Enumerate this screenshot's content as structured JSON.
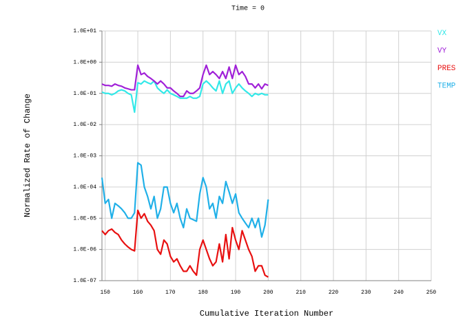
{
  "chart_data": {
    "type": "line",
    "title": "Time = 0",
    "x_label": "Cumulative Iteration Number",
    "y_label": "Normalized Rate of Change",
    "log_y": true,
    "grid": true,
    "legend": "top-right",
    "xlim": [
      149,
      250
    ],
    "xticks": [
      150,
      160,
      170,
      180,
      190,
      200,
      210,
      220,
      230,
      240,
      250
    ],
    "ylim": [
      1e-07,
      10
    ],
    "yticks": [
      {
        "value": 10,
        "label": "1.0E+01"
      },
      {
        "value": 1,
        "label": "1.0E+00"
      },
      {
        "value": 0.1,
        "label": "1.0E-01"
      },
      {
        "value": 0.01,
        "label": "1.0E-02"
      },
      {
        "value": 0.001,
        "label": "1.0E-03"
      },
      {
        "value": 0.0001,
        "label": "1.0E-04"
      },
      {
        "value": 1e-05,
        "label": "1.0E-05"
      },
      {
        "value": 1e-06,
        "label": "1.0E-06"
      },
      {
        "value": 1e-07,
        "label": "1.0E-07"
      }
    ],
    "x": [
      149,
      150,
      151,
      152,
      153,
      154,
      155,
      156,
      157,
      158,
      159,
      160,
      161,
      162,
      163,
      164,
      165,
      166,
      167,
      168,
      169,
      170,
      171,
      172,
      173,
      174,
      175,
      176,
      177,
      178,
      179,
      180,
      181,
      182,
      183,
      184,
      185,
      186,
      187,
      188,
      189,
      190,
      191,
      192,
      193,
      194,
      195,
      196,
      197,
      198,
      199,
      200
    ],
    "series": [
      {
        "name": "VX",
        "color": "#33e8e8",
        "values": [
          0.11,
          0.1,
          0.1,
          0.09,
          0.1,
          0.12,
          0.13,
          0.12,
          0.1,
          0.09,
          0.025,
          0.22,
          0.2,
          0.25,
          0.22,
          0.2,
          0.25,
          0.15,
          0.12,
          0.1,
          0.13,
          0.1,
          0.09,
          0.08,
          0.07,
          0.07,
          0.07,
          0.08,
          0.07,
          0.07,
          0.08,
          0.2,
          0.25,
          0.2,
          0.15,
          0.12,
          0.25,
          0.1,
          0.2,
          0.25,
          0.1,
          0.15,
          0.2,
          0.15,
          0.12,
          0.1,
          0.08,
          0.1,
          0.09,
          0.1,
          0.09,
          0.09
        ]
      },
      {
        "name": "VY",
        "color": "#a020d8",
        "values": [
          0.2,
          0.18,
          0.18,
          0.17,
          0.2,
          0.18,
          0.17,
          0.15,
          0.14,
          0.13,
          0.13,
          0.8,
          0.4,
          0.45,
          0.35,
          0.3,
          0.25,
          0.2,
          0.25,
          0.2,
          0.15,
          0.15,
          0.12,
          0.1,
          0.08,
          0.08,
          0.12,
          0.1,
          0.1,
          0.12,
          0.15,
          0.4,
          0.8,
          0.4,
          0.5,
          0.4,
          0.3,
          0.5,
          0.3,
          0.7,
          0.3,
          0.8,
          0.4,
          0.5,
          0.35,
          0.2,
          0.2,
          0.15,
          0.2,
          0.14,
          0.2,
          0.18
        ]
      },
      {
        "name": "PRES",
        "color": "#e81010",
        "values": [
          4e-06,
          3e-06,
          4e-06,
          4.5e-06,
          3.5e-06,
          3e-06,
          2e-06,
          1.5e-06,
          1.2e-06,
          1e-06,
          9e-07,
          1.8e-05,
          1e-05,
          1.4e-05,
          8e-06,
          6e-06,
          4e-06,
          1e-06,
          7e-07,
          2e-06,
          1.5e-06,
          6e-07,
          4e-07,
          5e-07,
          3e-07,
          2e-07,
          2e-07,
          3e-07,
          2e-07,
          1.5e-07,
          1e-06,
          2e-06,
          1e-06,
          5e-07,
          3e-07,
          4e-07,
          1.5e-06,
          4e-07,
          3e-06,
          5e-07,
          5e-06,
          2e-06,
          1e-06,
          4e-06,
          2e-06,
          1e-06,
          6e-07,
          2e-07,
          3e-07,
          3e-07,
          1.5e-07,
          1.3e-07
        ]
      },
      {
        "name": "TEMP",
        "color": "#20b0e8",
        "values": [
          0.0002,
          3e-05,
          4e-05,
          1e-05,
          3e-05,
          2.5e-05,
          2e-05,
          1.5e-05,
          1e-05,
          1e-05,
          1.5e-05,
          0.0006,
          0.0005,
          0.0001,
          5e-05,
          2e-05,
          5e-05,
          1e-05,
          2e-05,
          0.0001,
          0.0001,
          3e-05,
          1.5e-05,
          3e-05,
          1e-05,
          5e-06,
          2e-05,
          1e-05,
          9e-06,
          8e-06,
          6e-05,
          0.0002,
          0.0001,
          2e-05,
          3e-05,
          1e-05,
          5e-05,
          3e-05,
          0.00015,
          7e-05,
          3e-05,
          6e-05,
          1.5e-05,
          1e-05,
          7e-06,
          5e-06,
          1e-05,
          5e-06,
          1e-05,
          2.5e-06,
          6e-06,
          4e-05
        ]
      }
    ]
  }
}
